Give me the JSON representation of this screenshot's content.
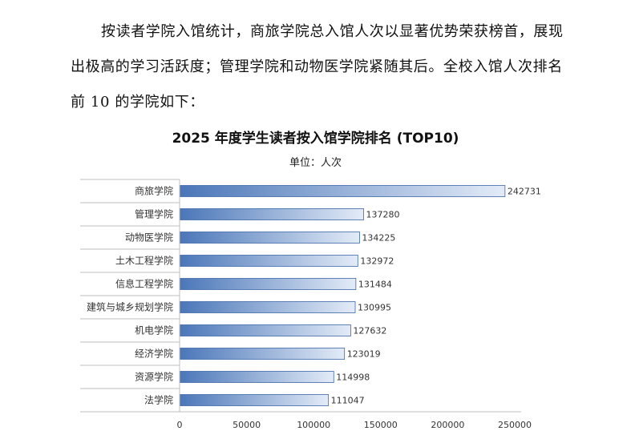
{
  "text": {
    "paragraph": "按读者学院入馆统计，商旅学院总入馆人次以显著优势荣获榜首，展现出极高的学习活跃度；管理学院和动物医学院紧随其后。全校入馆人次排名前 10 的学院如下："
  },
  "colors": {
    "bar_dark": "#4a76b8",
    "bar_light": "#e3ebf7",
    "bar_stroke": "#3f67a8",
    "axis": "#bfbfbf"
  },
  "chart_data": {
    "type": "bar",
    "orientation": "horizontal",
    "title": "2025 年度学生读者按入馆学院排名 (TOP10)",
    "subtitle": "单位：人次",
    "categories": [
      "商旅学院",
      "管理学院",
      "动物医学院",
      "土木工程学院",
      "信息工程学院",
      "建筑与城乡规划学院",
      "机电学院",
      "经济学院",
      "资源学院",
      "法学院"
    ],
    "values": [
      242731,
      137280,
      134225,
      132972,
      131484,
      130995,
      127632,
      123019,
      114998,
      111047
    ],
    "data_labels": [
      "242731",
      "137280",
      "134225",
      "132972",
      "131484",
      "130995",
      "127632",
      "123019",
      "114998",
      "111047"
    ],
    "x_ticks": [
      0,
      50000,
      100000,
      150000,
      200000,
      250000
    ],
    "x_tick_labels": [
      "0",
      "50000",
      "100000",
      "150000",
      "200000",
      "250000"
    ],
    "xlim": [
      0,
      250000
    ],
    "grid": false,
    "legend": false
  }
}
